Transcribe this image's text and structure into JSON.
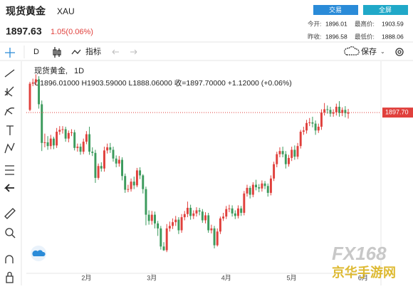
{
  "header": {
    "title": "现货黄金",
    "symbol": "XAU",
    "buttons": [
      "交易",
      "全屏"
    ]
  },
  "quote": {
    "price": "1897.63",
    "change": "1.05(0.06%)"
  },
  "stats": [
    {
      "label": "今开:",
      "value": "1896.01"
    },
    {
      "label": "最高价:",
      "value": "1903.59"
    },
    {
      "label": "昨收:",
      "value": "1896.58"
    },
    {
      "label": "最低价:",
      "value": "1888.06"
    }
  ],
  "toolbar": {
    "interval": "D",
    "indicators": "指标",
    "save": "保存"
  },
  "watermark": {
    "brand": "FX168",
    "site": "京华手游网"
  },
  "chart_data": {
    "type": "candlestick",
    "legend_name": "现货黄金,",
    "interval": "1D",
    "ohlc_line": "O1896.01000 H1903.59000 L1888.06000 收=1897.70000 +1.12000 (+0.06%)",
    "up_color": "#e0403c",
    "down_color": "#3b9a5c",
    "last_price": {
      "value": 1897.7,
      "label": "1897.70"
    },
    "xlim": [
      -1.2,
      118
    ],
    "ylim": [
      1640,
      1980
    ],
    "xticks": [
      {
        "value": 19,
        "label": "2月"
      },
      {
        "value": 41,
        "label": "3月"
      },
      {
        "value": 66,
        "label": "4月"
      },
      {
        "value": 88,
        "label": "5月"
      },
      {
        "value": 112,
        "label": "6月"
      }
    ],
    "open": [
      1902,
      1944,
      1946,
      1951,
      1911,
      1849,
      1850,
      1844,
      1856,
      1845,
      1867,
      1870,
      1871,
      1856,
      1865,
      1866,
      1841,
      1843,
      1835,
      1851,
      1863,
      1835,
      1833,
      1793,
      1812,
      1808,
      1837,
      1842,
      1838,
      1824,
      1816,
      1822,
      1796,
      1774,
      1775,
      1787,
      1781,
      1805,
      1797,
      1775,
      1734,
      1724,
      1734,
      1720,
      1712,
      1683,
      1677,
      1712,
      1716,
      1722,
      1726,
      1709,
      1730,
      1735,
      1745,
      1732,
      1736,
      1741,
      1739,
      1725,
      1733,
      1709,
      1712,
      1685,
      1707,
      1728,
      1731,
      1743,
      1744,
      1736,
      1732,
      1744,
      1737,
      1768,
      1777,
      1766,
      1782,
      1778,
      1776,
      1784,
      1780,
      1769,
      1792,
      1815,
      1831,
      1836,
      1831,
      1815,
      1825,
      1838,
      1827,
      1844,
      1867,
      1869,
      1881,
      1882,
      1880,
      1869,
      1875,
      1898,
      1903,
      1902,
      1896,
      1898,
      1907,
      1897,
      1902,
      1896.01
    ],
    "high": [
      1947,
      1952,
      1959,
      1956,
      1917,
      1864,
      1860,
      1862,
      1859,
      1873,
      1876,
      1876,
      1875,
      1869,
      1871,
      1870,
      1848,
      1848,
      1856,
      1868,
      1875,
      1842,
      1838,
      1816,
      1818,
      1843,
      1848,
      1849,
      1843,
      1829,
      1828,
      1826,
      1800,
      1782,
      1792,
      1795,
      1809,
      1810,
      1799,
      1779,
      1741,
      1740,
      1739,
      1724,
      1716,
      1690,
      1719,
      1723,
      1728,
      1732,
      1730,
      1735,
      1740,
      1755,
      1750,
      1741,
      1746,
      1745,
      1743,
      1738,
      1737,
      1718,
      1716,
      1712,
      1731,
      1737,
      1748,
      1750,
      1749,
      1741,
      1749,
      1748,
      1772,
      1782,
      1780,
      1786,
      1790,
      1783,
      1789,
      1788,
      1784,
      1797,
      1819,
      1835,
      1842,
      1843,
      1836,
      1830,
      1843,
      1845,
      1849,
      1870,
      1875,
      1886,
      1889,
      1891,
      1885,
      1880,
      1903,
      1913,
      1909,
      1907,
      1903,
      1912,
      1916,
      1906,
      1908,
      1903.59
    ],
    "low": [
      1900,
      1940,
      1941,
      1904,
      1836,
      1842,
      1838,
      1839,
      1839,
      1841,
      1862,
      1864,
      1851,
      1850,
      1860,
      1837,
      1835,
      1830,
      1831,
      1847,
      1830,
      1828,
      1785,
      1790,
      1803,
      1803,
      1832,
      1833,
      1819,
      1810,
      1811,
      1789,
      1769,
      1770,
      1771,
      1775,
      1778,
      1791,
      1768,
      1717,
      1718,
      1718,
      1712,
      1700,
      1678,
      1676,
      1674,
      1707,
      1711,
      1716,
      1703,
      1705,
      1725,
      1730,
      1726,
      1727,
      1731,
      1733,
      1721,
      1720,
      1705,
      1704,
      1680,
      1683,
      1703,
      1724,
      1727,
      1738,
      1731,
      1727,
      1728,
      1732,
      1733,
      1763,
      1760,
      1762,
      1773,
      1770,
      1771,
      1775,
      1763,
      1765,
      1788,
      1810,
      1826,
      1826,
      1808,
      1811,
      1820,
      1822,
      1823,
      1840,
      1862,
      1864,
      1876,
      1874,
      1862,
      1865,
      1870,
      1893,
      1896,
      1891,
      1891,
      1893,
      1891,
      1892,
      1890,
      1888.06
    ],
    "close": [
      1944,
      1946,
      1951,
      1911,
      1849,
      1850,
      1844,
      1856,
      1845,
      1867,
      1870,
      1871,
      1856,
      1865,
      1866,
      1841,
      1843,
      1835,
      1851,
      1863,
      1835,
      1833,
      1793,
      1812,
      1808,
      1837,
      1842,
      1838,
      1824,
      1816,
      1822,
      1796,
      1774,
      1775,
      1787,
      1781,
      1805,
      1797,
      1775,
      1734,
      1724,
      1734,
      1720,
      1712,
      1683,
      1677,
      1712,
      1716,
      1722,
      1726,
      1709,
      1730,
      1735,
      1745,
      1732,
      1736,
      1741,
      1739,
      1725,
      1733,
      1709,
      1712,
      1685,
      1707,
      1728,
      1731,
      1743,
      1744,
      1736,
      1732,
      1744,
      1737,
      1768,
      1777,
      1766,
      1782,
      1778,
      1776,
      1784,
      1780,
      1769,
      1792,
      1815,
      1831,
      1836,
      1831,
      1815,
      1825,
      1838,
      1827,
      1844,
      1867,
      1869,
      1881,
      1882,
      1880,
      1869,
      1875,
      1898,
      1903,
      1902,
      1896,
      1898,
      1907,
      1897,
      1902,
      1896.58,
      1897.7
    ]
  }
}
